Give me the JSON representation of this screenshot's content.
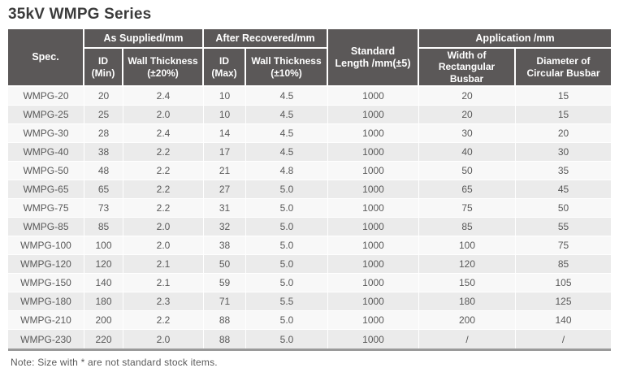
{
  "page": {
    "title": "35kV WMPG Series",
    "note": "Note: Size with * are not standard stock items."
  },
  "colors": {
    "header_background": "#5b5858",
    "header_text": "#ffffff",
    "row_odd_background": "#f8f8f8",
    "row_even_background": "#ebebeb",
    "body_text": "#595959",
    "title_text": "#3b3b3b",
    "bottom_rule": "#9a9a9a"
  },
  "table": {
    "header": {
      "spec": "Spec.",
      "as_supplied": "As Supplied/mm",
      "after_recovered": "After Recovered/mm",
      "standard_length": "Standard\nLength /mm(±5)",
      "application": "Application /mm",
      "id_min": "ID\n(Min)",
      "wall_thickness_20": "Wall Thickness\n(±20%)",
      "id_max": "ID\n(Max)",
      "wall_thickness_10": "Wall Thickness\n(±10%)",
      "width_rect_busbar": "Width of\nRectangular Busbar",
      "diameter_circ_busbar": "Diameter of\nCircular Busbar"
    },
    "rows": [
      [
        "WMPG-20",
        "20",
        "2.4",
        "10",
        "4.5",
        "1000",
        "20",
        "15"
      ],
      [
        "WMPG-25",
        "25",
        "2.0",
        "10",
        "4.5",
        "1000",
        "20",
        "15"
      ],
      [
        "WMPG-30",
        "28",
        "2.4",
        "14",
        "4.5",
        "1000",
        "30",
        "20"
      ],
      [
        "WMPG-40",
        "38",
        "2.2",
        "17",
        "4.5",
        "1000",
        "40",
        "30"
      ],
      [
        "WMPG-50",
        "48",
        "2.2",
        "21",
        "4.8",
        "1000",
        "50",
        "35"
      ],
      [
        "WMPG-65",
        "65",
        "2.2",
        "27",
        "5.0",
        "1000",
        "65",
        "45"
      ],
      [
        "WMPG-75",
        "73",
        "2.2",
        "31",
        "5.0",
        "1000",
        "75",
        "50"
      ],
      [
        "WMPG-85",
        "85",
        "2.0",
        "32",
        "5.0",
        "1000",
        "85",
        "55"
      ],
      [
        "WMPG-100",
        "100",
        "2.0",
        "38",
        "5.0",
        "1000",
        "100",
        "75"
      ],
      [
        "WMPG-120",
        "120",
        "2.1",
        "50",
        "5.0",
        "1000",
        "120",
        "85"
      ],
      [
        "WMPG-150",
        "140",
        "2.1",
        "59",
        "5.0",
        "1000",
        "150",
        "105"
      ],
      [
        "WMPG-180",
        "180",
        "2.3",
        "71",
        "5.5",
        "1000",
        "180",
        "125"
      ],
      [
        "WMPG-210",
        "200",
        "2.2",
        "88",
        "5.0",
        "1000",
        "200",
        "140"
      ],
      [
        "WMPG-230",
        "220",
        "2.0",
        "88",
        "5.0",
        "1000",
        "/",
        "/"
      ]
    ]
  }
}
